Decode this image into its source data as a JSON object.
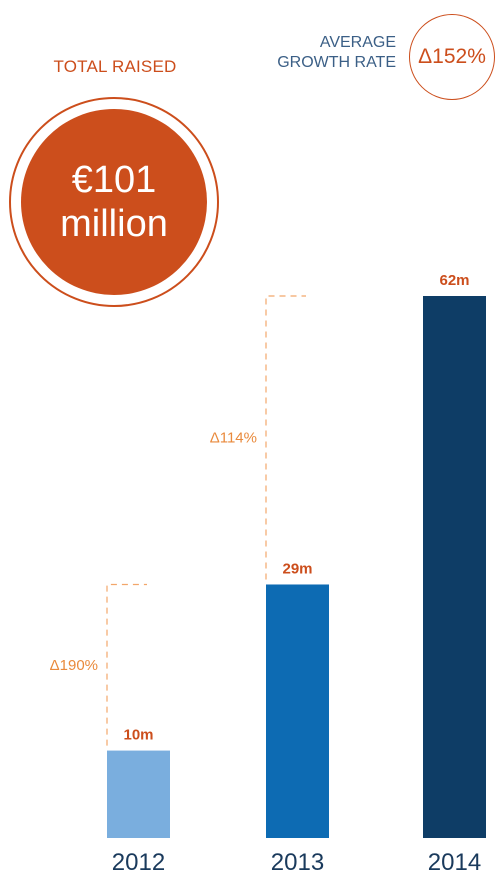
{
  "total": {
    "label": "TOTAL RAISED",
    "amount": "€101",
    "unit": "million",
    "color": "#cc4e1c"
  },
  "growth": {
    "label_line1": "AVERAGE",
    "label_line2": "GROWTH RATE",
    "value": "Δ152%"
  },
  "chart_data": {
    "type": "bar",
    "categories": [
      "2012",
      "2013",
      "2014"
    ],
    "values": [
      10,
      29,
      62
    ],
    "value_labels": [
      "10m",
      "29m",
      "62m"
    ],
    "colors": [
      "#7aaede",
      "#0d6bb3",
      "#0e3d66"
    ],
    "growth_annotations": [
      {
        "from": "2012",
        "to": "2013",
        "label": "Δ190%"
      },
      {
        "from": "2013",
        "to": "2014",
        "label": "Δ114%"
      }
    ],
    "title": "",
    "xlabel": "",
    "ylabel": "",
    "ylim": [
      0,
      62
    ],
    "grid": false
  }
}
